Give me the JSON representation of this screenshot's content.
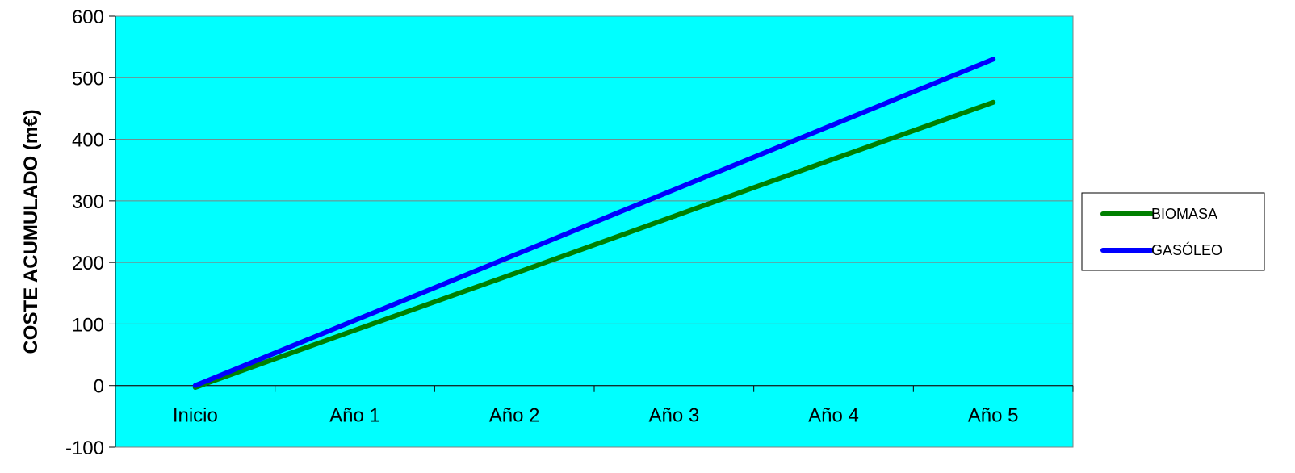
{
  "chart_data": {
    "type": "line",
    "title": "",
    "xlabel": "",
    "ylabel": "COSTE ACUMULADO (m€)",
    "categories": [
      "Inicio",
      "Año 1",
      "Año 2",
      "Año 3",
      "Año 4",
      "Año 5"
    ],
    "ylim": [
      -100,
      600
    ],
    "yticks": [
      "-100",
      "0",
      "100",
      "200",
      "300",
      "400",
      "500",
      "600"
    ],
    "grid": true,
    "legend_position": "right",
    "plot_background": "#00FFFF",
    "series": [
      {
        "name": "BIOMASA",
        "color": "#008000",
        "values": [
          -3,
          90,
          182,
          275,
          368,
          460
        ]
      },
      {
        "name": "GASÓLEO",
        "color": "#0000FF",
        "values": [
          0,
          106,
          212,
          318,
          424,
          530
        ]
      }
    ]
  }
}
